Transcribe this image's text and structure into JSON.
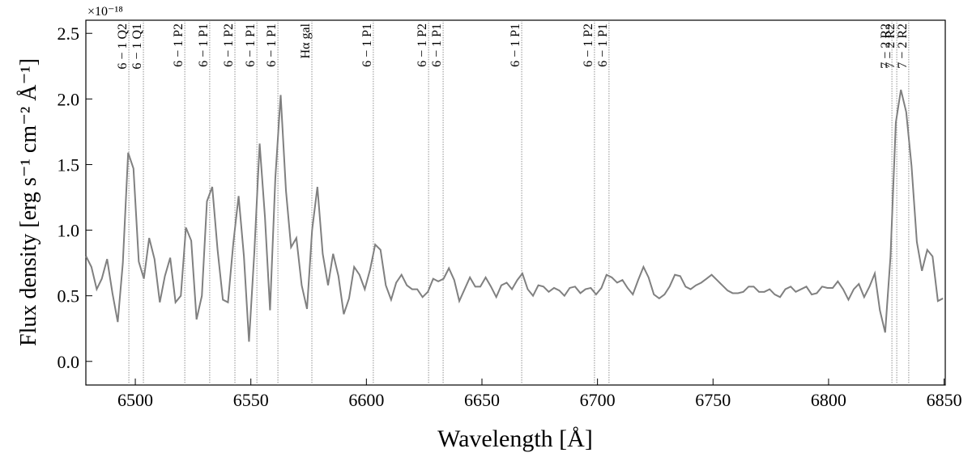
{
  "chart_data": {
    "type": "line",
    "x_label": "Wavelength [Å]",
    "y_label": "Flux density [erg s⁻¹ cm⁻² Å⁻¹]",
    "y_offset_label": "×10⁻¹⁸",
    "xlim": [
      6478.6,
      6850.5
    ],
    "ylim": [
      -0.18,
      2.6
    ],
    "xticks": [
      6500,
      6550,
      6600,
      6650,
      6700,
      6750,
      6800,
      6850
    ],
    "yticks": [
      {
        "value": 0,
        "label": "0.0"
      },
      0.5,
      {
        "value": 1,
        "label": "1.0"
      },
      1.5,
      {
        "value": 2,
        "label": "2.0"
      },
      2.5
    ],
    "x": [
      6478.7,
      6481.0,
      6483.3,
      6485.5,
      6487.8,
      6490.1,
      6492.4,
      6494.6,
      6496.9,
      6499.2,
      6501.5,
      6503.7,
      6506.0,
      6508.3,
      6510.6,
      6512.8,
      6515.1,
      6517.4,
      6519.7,
      6521.9,
      6524.2,
      6526.5,
      6528.8,
      6531.0,
      6533.3,
      6535.6,
      6537.9,
      6540.1,
      6542.4,
      6544.7,
      6547.0,
      6549.2,
      6551.5,
      6553.8,
      6556.1,
      6558.3,
      6560.6,
      6562.9,
      6565.2,
      6567.4,
      6569.7,
      6572.0,
      6574.3,
      6576.5,
      6578.8,
      6581.1,
      6583.4,
      6585.6,
      6587.9,
      6590.2,
      6592.5,
      6594.7,
      6597.0,
      6599.3,
      6601.6,
      6603.8,
      6606.1,
      6608.4,
      6610.7,
      6612.9,
      6615.2,
      6617.5,
      6619.8,
      6622.0,
      6624.3,
      6626.6,
      6628.9,
      6631.1,
      6633.4,
      6635.7,
      6638.0,
      6640.2,
      6642.5,
      6644.8,
      6647.1,
      6649.3,
      6651.6,
      6653.9,
      6656.2,
      6658.4,
      6660.7,
      6663.0,
      6665.3,
      6667.5,
      6669.8,
      6672.1,
      6674.4,
      6676.6,
      6678.9,
      6681.2,
      6683.5,
      6685.7,
      6688.0,
      6690.3,
      6692.6,
      6694.8,
      6697.1,
      6699.4,
      6701.7,
      6703.9,
      6706.2,
      6708.5,
      6710.8,
      6713.0,
      6715.3,
      6717.6,
      6719.9,
      6722.1,
      6724.4,
      6726.7,
      6729.0,
      6731.2,
      6733.5,
      6735.8,
      6738.1,
      6740.3,
      6742.6,
      6744.9,
      6747.2,
      6749.4,
      6751.7,
      6754.0,
      6756.3,
      6758.5,
      6760.8,
      6763.1,
      6765.4,
      6767.6,
      6769.9,
      6772.2,
      6774.5,
      6776.7,
      6779.0,
      6781.3,
      6783.6,
      6785.8,
      6788.1,
      6790.4,
      6792.7,
      6794.9,
      6797.2,
      6799.5,
      6801.8,
      6804.0,
      6806.3,
      6808.6,
      6810.9,
      6813.1,
      6815.4,
      6817.7,
      6820.0,
      6822.2,
      6824.5,
      6826.8,
      6829.1,
      6831.3,
      6833.6,
      6835.9,
      6838.2,
      6840.4,
      6842.7,
      6845.0,
      6847.3,
      6849.5
    ],
    "series": [
      {
        "color": "#808080",
        "values": [
          0.8,
          0.72,
          0.55,
          0.63,
          0.78,
          0.52,
          0.3,
          0.75,
          1.59,
          1.47,
          0.76,
          0.63,
          0.94,
          0.78,
          0.45,
          0.65,
          0.79,
          0.45,
          0.5,
          1.02,
          0.92,
          0.32,
          0.5,
          1.22,
          1.33,
          0.85,
          0.47,
          0.45,
          0.9,
          1.26,
          0.8,
          0.15,
          0.83,
          1.66,
          1.1,
          0.39,
          1.4,
          2.03,
          1.3,
          0.87,
          0.94,
          0.58,
          0.4,
          1.0,
          1.33,
          0.82,
          0.58,
          0.82,
          0.65,
          0.36,
          0.48,
          0.72,
          0.66,
          0.55,
          0.7,
          0.89,
          0.85,
          0.58,
          0.47,
          0.6,
          0.66,
          0.58,
          0.55,
          0.55,
          0.49,
          0.53,
          0.63,
          0.61,
          0.63,
          0.71,
          0.62,
          0.46,
          0.55,
          0.64,
          0.57,
          0.57,
          0.64,
          0.57,
          0.49,
          0.58,
          0.6,
          0.55,
          0.62,
          0.67,
          0.55,
          0.5,
          0.58,
          0.57,
          0.53,
          0.56,
          0.54,
          0.5,
          0.56,
          0.57,
          0.52,
          0.55,
          0.56,
          0.51,
          0.56,
          0.66,
          0.64,
          0.6,
          0.62,
          0.56,
          0.51,
          0.62,
          0.72,
          0.64,
          0.51,
          0.48,
          0.51,
          0.57,
          0.66,
          0.65,
          0.57,
          0.55,
          0.58,
          0.6,
          0.63,
          0.66,
          0.62,
          0.58,
          0.54,
          0.52,
          0.52,
          0.53,
          0.57,
          0.57,
          0.53,
          0.53,
          0.55,
          0.51,
          0.49,
          0.55,
          0.57,
          0.53,
          0.55,
          0.57,
          0.51,
          0.52,
          0.57,
          0.56,
          0.56,
          0.61,
          0.55,
          0.47,
          0.55,
          0.59,
          0.49,
          0.57,
          0.67,
          0.39,
          0.22,
          0.8,
          1.82,
          2.07,
          1.9,
          1.49,
          0.91,
          0.69,
          0.85,
          0.8,
          0.46,
          0.48
        ]
      }
    ],
    "annotations": [
      {
        "x": 6497.2,
        "label": "6 − 1 Q2"
      },
      {
        "x": 6503.5,
        "label": "6 − 1 Q1"
      },
      {
        "x": 6521.4,
        "label": "6 − 1 P2"
      },
      {
        "x": 6532.2,
        "label": "6 − 1 P1"
      },
      {
        "x": 6543.1,
        "label": "6 − 1 P2"
      },
      {
        "x": 6552.6,
        "label": "6 − 1 P1"
      },
      {
        "x": 6561.7,
        "label": "6 − 1 P1"
      },
      {
        "x": 6576.4,
        "label": "Hα gal"
      },
      {
        "x": 6603.0,
        "label": "6 − 1 P1"
      },
      {
        "x": 6626.9,
        "label": "6 − 1 P2"
      },
      {
        "x": 6633.2,
        "label": "6 − 1 P1"
      },
      {
        "x": 6667.2,
        "label": "6 − 1 P1"
      },
      {
        "x": 6698.7,
        "label": "6 − 1 P2"
      },
      {
        "x": 6705.0,
        "label": "6 − 1 P1"
      },
      {
        "x": 6827.4,
        "label": "7 − 2 R2"
      },
      {
        "x": 6829.5,
        "label": "7 − 2 R2"
      },
      {
        "x": 6834.7,
        "label": "7 − 2 R2"
      }
    ]
  }
}
